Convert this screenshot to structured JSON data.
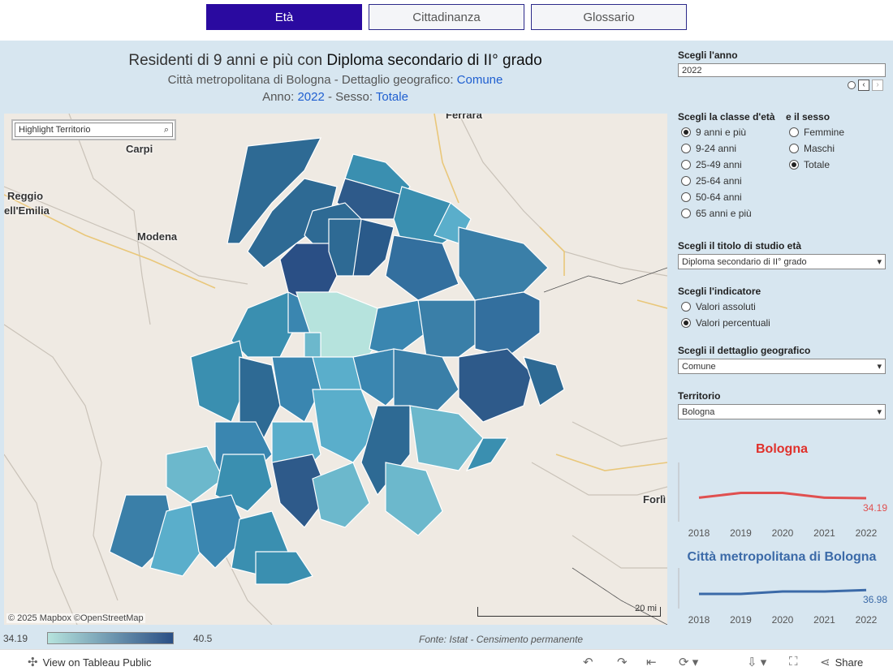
{
  "tabs": [
    {
      "label": "Età"
    },
    {
      "label": "Cittadinanza"
    },
    {
      "label": "Glossario"
    }
  ],
  "header": {
    "title_prefix": "Residenti di 9 anni e più con ",
    "title_bold": "Diploma secondario di II° grado",
    "subtitle_prefix": "Città metropolitana di Bologna - Dettaglio geografico: ",
    "subtitle_value": "Comune",
    "year_label": "Anno: ",
    "year_value": "2022",
    "sex_label": " - Sesso: ",
    "sex_value": "Totale"
  },
  "map": {
    "highlight_placeholder": "Highlight Territorio",
    "cities": [
      "Ferrara",
      "Carpi",
      "Reggio",
      "ell'Emilia",
      "Modena",
      "Forlì"
    ],
    "attribution": "© 2025 Mapbox  ©OpenStreetMap",
    "scale_label": "20 mi"
  },
  "legend": {
    "min": "34.19",
    "max": "40.5",
    "source": "Fonte: Istat - Censimento permanente",
    "color_low": "#b6e3dd",
    "color_high": "#2a4f85"
  },
  "panel": {
    "year_label": "Scegli l'anno",
    "year_value": "2022",
    "age_label": "Scegli la classe d'età",
    "sex_label": "e il sesso",
    "age_options": [
      {
        "label": "9 anni e più",
        "selected": true
      },
      {
        "label": "9-24 anni",
        "selected": false
      },
      {
        "label": "25-49 anni",
        "selected": false
      },
      {
        "label": "25-64 anni",
        "selected": false
      },
      {
        "label": "50-64 anni",
        "selected": false
      },
      {
        "label": "65 anni e più",
        "selected": false
      }
    ],
    "sex_options": [
      {
        "label": "Femmine",
        "selected": false
      },
      {
        "label": "Maschi",
        "selected": false
      },
      {
        "label": "Totale",
        "selected": true
      }
    ],
    "study_label": "Scegli il titolo di studio età",
    "study_value": "Diploma secondario di II° grado",
    "indicator_label": "Scegli l'indicatore",
    "indicator_options": [
      {
        "label": "Valori assoluti",
        "selected": false
      },
      {
        "label": "Valori percentuali",
        "selected": true
      }
    ],
    "geo_label": "Scegli il dettaglio geografico",
    "geo_value": "Comune",
    "territory_label": "Territorio",
    "territory_value": "Bologna"
  },
  "chart_data": [
    {
      "type": "line",
      "title": "Bologna",
      "color": "#e05050",
      "x": [
        "2018",
        "2019",
        "2020",
        "2021",
        "2022"
      ],
      "values": [
        34.2,
        34.3,
        34.3,
        34.2,
        34.19
      ],
      "end_label": "34.19"
    },
    {
      "type": "line",
      "title": "Città metropolitana di Bologna",
      "color": "#3b6aa8",
      "x": [
        "2018",
        "2019",
        "2020",
        "2021",
        "2022"
      ],
      "values": [
        36.9,
        36.9,
        36.95,
        36.95,
        36.98
      ],
      "end_label": "36.98"
    }
  ],
  "bottombar": {
    "view_label": "View on Tableau Public",
    "share_label": "Share"
  }
}
